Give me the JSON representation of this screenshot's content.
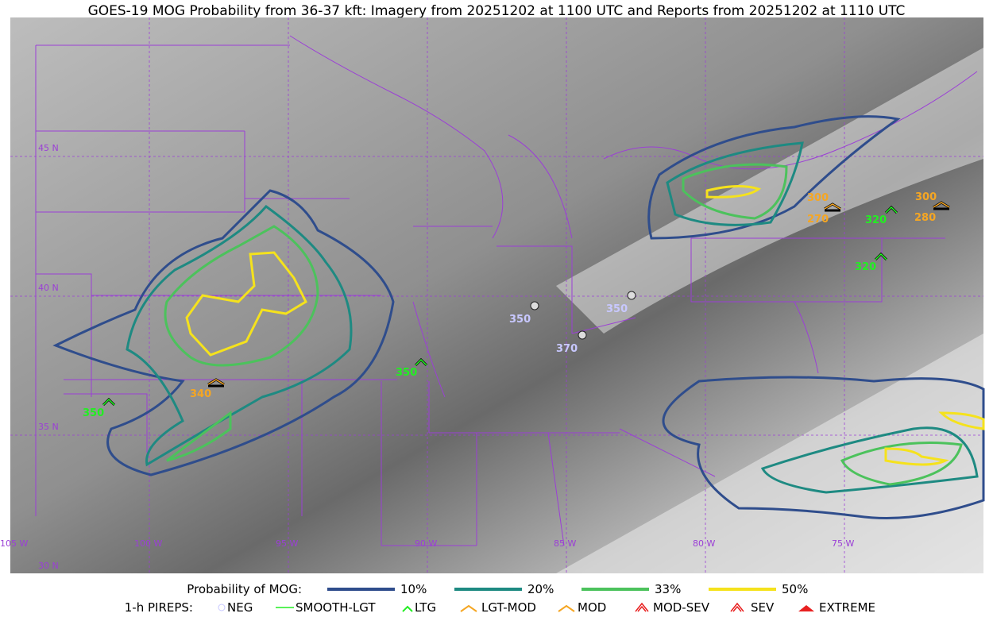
{
  "title": "GOES-19 MOG Probability from 36-37 kft: Imagery from 20251202 at 1100 UTC and Reports from 20251202 at 1110 UTC",
  "map": {
    "lat_labels": [
      "45 N",
      "40 N",
      "35 N",
      "30 N"
    ],
    "lon_labels": [
      "105 W",
      "100 W",
      "95 W",
      "90 W",
      "85 W",
      "80 W",
      "75 W"
    ],
    "report_labels": [
      350,
      340,
      350,
      350,
      370,
      350,
      300,
      270,
      320,
      320,
      300,
      280
    ]
  },
  "legend": {
    "probability_title": "Probability of MOG:",
    "probability_levels": [
      "10%",
      "20%",
      "33%",
      "50%"
    ],
    "pireps_title": "1-h PIREPS:",
    "pirep_types": [
      "NEG",
      "SMOOTH-LGT",
      "LTG",
      "LGT-MOD",
      "MOD",
      "MOD-SEV",
      "SEV",
      "EXTREME"
    ]
  }
}
